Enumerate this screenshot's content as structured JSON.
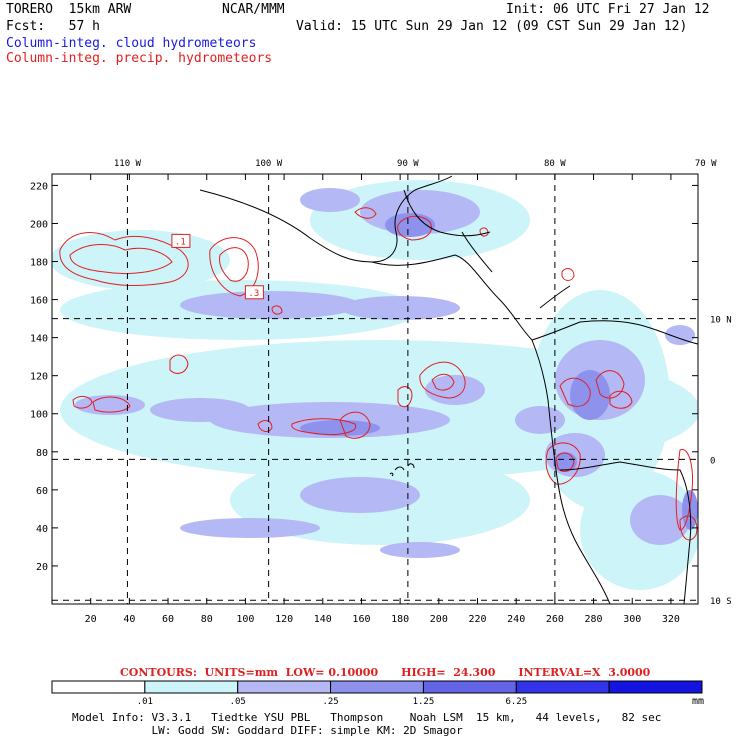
{
  "header": {
    "model": "TORERO  15km ARW",
    "org": "NCAR/MMM",
    "init": "Init: 06 UTC Fri 27 Jan 12",
    "fcst": "Fcst:   57 h",
    "valid": "Valid: 15 UTC Sun 29 Jan 12 (09 CST Sun 29 Jan 12)",
    "field1": "Column-integ. cloud hydrometeors",
    "field2": "Column-integ. precip. hydrometeors"
  },
  "map": {
    "lon_labels": [
      {
        "text": "110 W",
        "xi": 39
      },
      {
        "text": "100 W",
        "xi": 112
      },
      {
        "text": "90 W",
        "xi": 184
      },
      {
        "text": "80 W",
        "xi": 260
      },
      {
        "text": "70 W",
        "xi": 338
      }
    ],
    "lat_labels": [
      {
        "text": "10 N",
        "yi": 150
      },
      {
        "text": "0",
        "yi": 76
      },
      {
        "text": "10 S",
        "yi": 2
      }
    ],
    "x_ticks": [
      "20",
      "40",
      "60",
      "80",
      "100",
      "120",
      "140",
      "160",
      "180",
      "200",
      "220",
      "240",
      "260",
      "280",
      "300",
      "320"
    ],
    "y_ticks": [
      "20",
      "40",
      "60",
      "80",
      "100",
      "120",
      "140",
      "160",
      "180",
      "200",
      "220"
    ],
    "box_labels": [
      {
        "text": ".1",
        "xi": 62,
        "yi": 189
      },
      {
        "text": ".3",
        "xi": 100,
        "yi": 162
      }
    ]
  },
  "legend": {
    "contours_text": "CONTOURS:  UNITS=mm  LOW= 0.10000      HIGH=  24.300      INTERVAL=X  3.0000",
    "thresholds": [
      ".01",
      ".05",
      ".25",
      "1.25",
      "6.25"
    ],
    "unit": "mm",
    "colors": [
      "#ffffff",
      "#cdf4f8",
      "#b4b8f4",
      "#8e92ec",
      "#6464e6",
      "#3232e8",
      "#1414e0"
    ]
  },
  "footer": {
    "line1": "Model Info: V3.3.1   Tiedtke YSU PBL   Thompson    Noah LSM  15 km,   44 levels,   82 sec",
    "line2": "            LW: Godd SW: Goddard DIFF: simple KM: 2D Smagor"
  }
}
